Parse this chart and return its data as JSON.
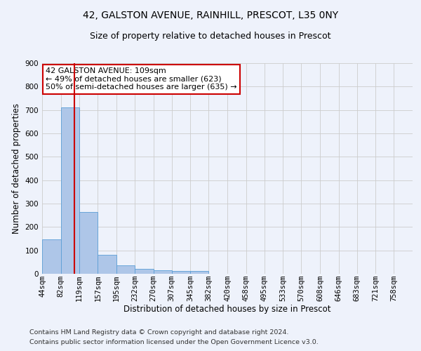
{
  "title_line1": "42, GALSTON AVENUE, RAINHILL, PRESCOT, L35 0NY",
  "title_line2": "Size of property relative to detached houses in Prescot",
  "xlabel": "Distribution of detached houses by size in Prescot",
  "ylabel": "Number of detached properties",
  "bar_edges": [
    44,
    82,
    119,
    157,
    195,
    232,
    270,
    307,
    345,
    382,
    420,
    458,
    495,
    533,
    570,
    608,
    646,
    683,
    721,
    758,
    796
  ],
  "bar_heights": [
    148,
    710,
    265,
    82,
    35,
    22,
    14,
    12,
    11,
    0,
    0,
    0,
    0,
    0,
    0,
    0,
    0,
    0,
    0,
    0
  ],
  "bar_color": "#aec6e8",
  "bar_edge_color": "#5a9ed6",
  "grid_color": "#cccccc",
  "bg_color": "#eef2fb",
  "vline_x": 109,
  "vline_color": "#cc0000",
  "annotation_text": "42 GALSTON AVENUE: 109sqm\n← 49% of detached houses are smaller (623)\n50% of semi-detached houses are larger (635) →",
  "annotation_box_color": "#ffffff",
  "annotation_box_edge": "#cc0000",
  "footnote1": "Contains HM Land Registry data © Crown copyright and database right 2024.",
  "footnote2": "Contains public sector information licensed under the Open Government Licence v3.0.",
  "ylim": [
    0,
    900
  ],
  "yticks": [
    0,
    100,
    200,
    300,
    400,
    500,
    600,
    700,
    800,
    900
  ],
  "title1_fontsize": 10,
  "title2_fontsize": 9,
  "xlabel_fontsize": 8.5,
  "ylabel_fontsize": 8.5,
  "tick_fontsize": 7.5,
  "footnote_fontsize": 6.8,
  "annot_fontsize": 8
}
